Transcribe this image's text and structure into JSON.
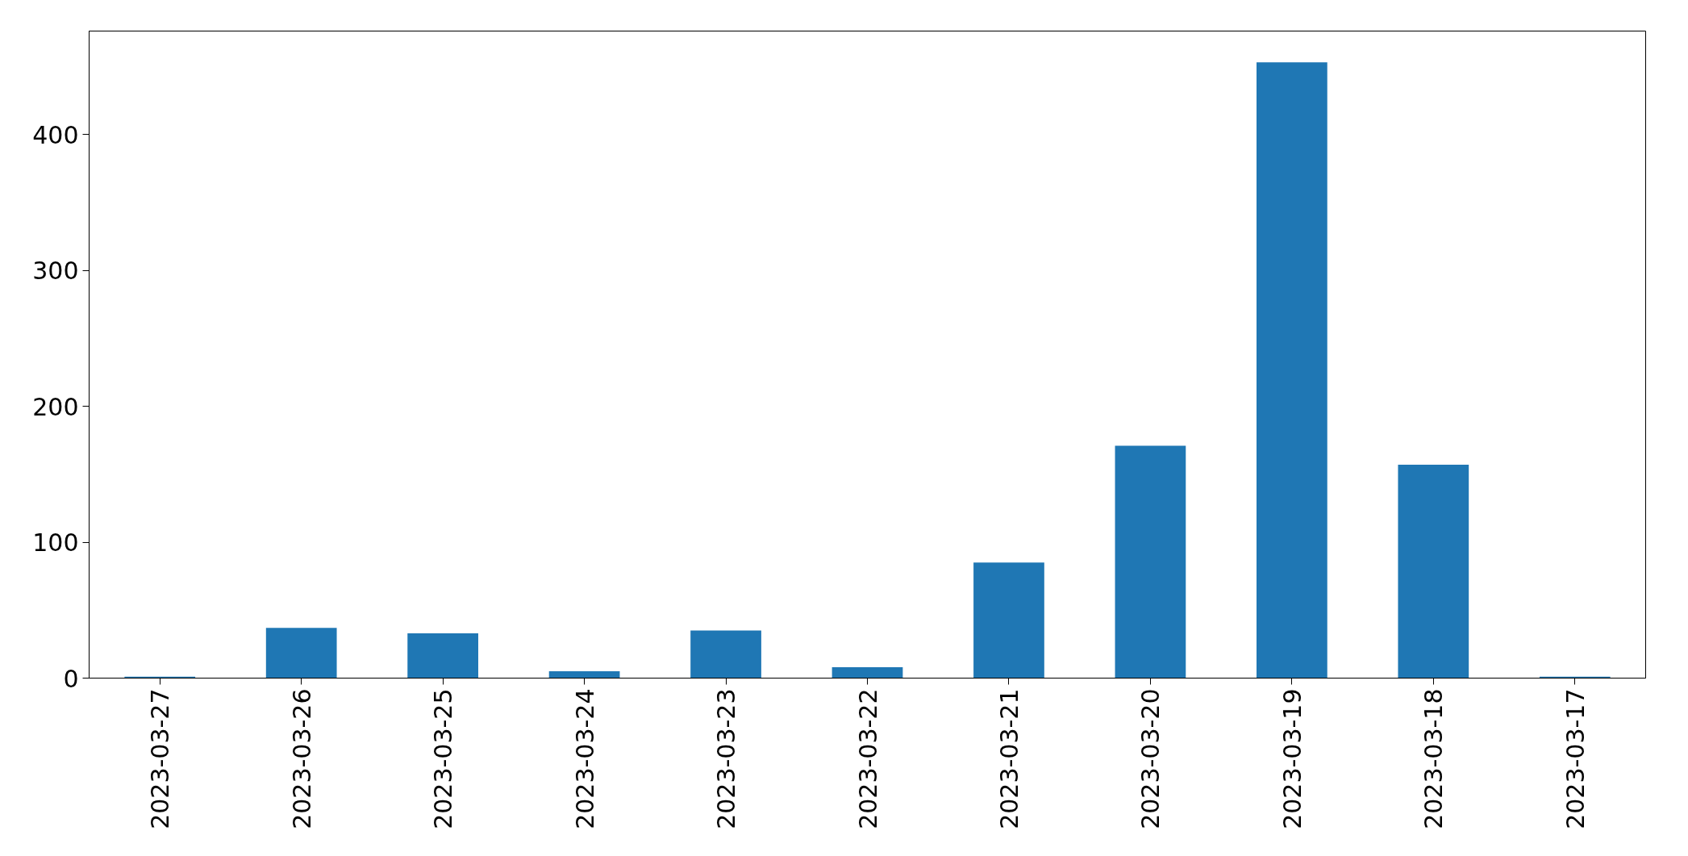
{
  "chart_data": {
    "type": "bar",
    "categories": [
      "2023-03-27",
      "2023-03-26",
      "2023-03-25",
      "2023-03-24",
      "2023-03-23",
      "2023-03-22",
      "2023-03-21",
      "2023-03-20",
      "2023-03-19",
      "2023-03-18",
      "2023-03-17"
    ],
    "values": [
      1,
      37,
      33,
      5,
      35,
      8,
      85,
      171,
      453,
      157,
      1
    ],
    "color": "#1f77b4",
    "ylim": [
      0,
      476
    ],
    "yticks": [
      0,
      100,
      200,
      300,
      400
    ],
    "grid": false
  }
}
